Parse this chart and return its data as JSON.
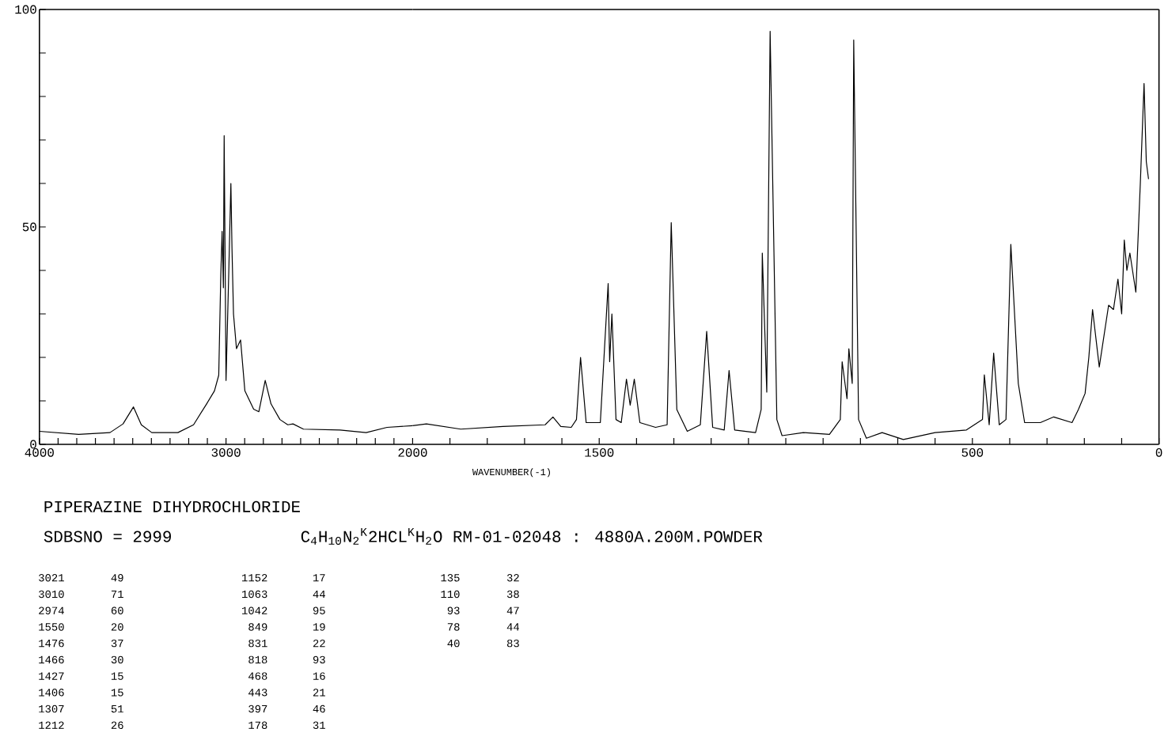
{
  "chart_data": [
    {
      "type": "line",
      "title": "PIPERAZINE DIHYDROCHLORIDE",
      "subtitle": "SDBSNO = 2999",
      "x": [
        4000,
        3790,
        3622,
        3552,
        3496,
        3454,
        3398,
        3258,
        3174,
        3104,
        3062,
        3039,
        3028,
        3021,
        3014,
        3010,
        3000,
        2985,
        2974,
        2968,
        2960,
        2944,
        2922,
        2899,
        2852,
        2824,
        2790,
        2759,
        2711,
        2669,
        2641,
        2585,
        2389,
        2249,
        2137,
        2000
      ],
      "series": [
        {
          "color": "#000000",
          "values": [
            3.0,
            2.3,
            2.7,
            4.7,
            8.6,
            4.5,
            2.7,
            2.7,
            4.5,
            9.3,
            12.3,
            15.9,
            39,
            49,
            36,
            71,
            14.7,
            40,
            60,
            45,
            30,
            22,
            24,
            12.3,
            8.1,
            7.5,
            14.7,
            9.3,
            5.7,
            4.5,
            4.7,
            3.5,
            3.3,
            2.7,
            3.9,
            4.3
          ]
        }
      ],
      "xlim": [
        4000,
        2000
      ],
      "xticks": [
        4000,
        {
          "value": 3900,
          "label": null
        },
        {
          "value": 3800,
          "label": null
        },
        {
          "value": 3700,
          "label": null
        },
        {
          "value": 3600,
          "label": null
        },
        {
          "value": 3500,
          "label": null
        },
        {
          "value": 3400,
          "label": null
        },
        {
          "value": 3300,
          "label": null
        },
        {
          "value": 3200,
          "label": null
        },
        {
          "value": 3100,
          "label": null
        },
        3000,
        {
          "value": 2900,
          "label": null
        },
        {
          "value": 2800,
          "label": null
        },
        {
          "value": 2700,
          "label": null
        },
        {
          "value": 2600,
          "label": null
        },
        {
          "value": 2500,
          "label": null
        },
        {
          "value": 2400,
          "label": null
        },
        {
          "value": 2300,
          "label": null
        },
        {
          "value": 2200,
          "label": null
        },
        {
          "value": 2100,
          "label": null
        },
        2000
      ],
      "ylim": [
        0,
        100
      ],
      "yticks": [
        0,
        {
          "value": 10,
          "label": null
        },
        {
          "value": 20,
          "label": null
        },
        {
          "value": 30,
          "label": null
        },
        {
          "value": 40,
          "label": null
        },
        50,
        {
          "value": 60,
          "label": null
        },
        {
          "value": 70,
          "label": null
        },
        {
          "value": 80,
          "label": null
        },
        {
          "value": 90,
          "label": null
        },
        100
      ],
      "marker": "none",
      "line_style": "solid",
      "annotations": [
        "C$_{4}$H$_{10}$N$_{2}$$^{K}$2HCL$^{K}$H$_{2}$O RM-01-02048 : 4880A.200M.POWDER",
        "3021",
        "49",
        "3010",
        "71",
        "2974",
        "60",
        "1550",
        "20",
        "1476",
        "37",
        "1466",
        "30",
        "1427",
        "15",
        "1406",
        "15",
        "1307",
        "51",
        "1212",
        "26",
        "1152",
        "17",
        "1063",
        "44",
        "1042",
        "95",
        "849",
        "19",
        "831",
        "22",
        "818",
        "93",
        "468",
        "16",
        "443",
        "21",
        "397",
        "46",
        "178",
        "31",
        "135",
        "32",
        "110",
        "38",
        "93",
        "47",
        "78",
        "44",
        "40",
        "83"
      ]
    },
    {
      "type": "line",
      "xlabel": "WAVENUMBER(-1)",
      "x": [
        2000,
        1963,
        1871,
        1758,
        1645,
        1624,
        1603,
        1575,
        1561,
        1550,
        1535,
        1497,
        1476,
        1472,
        1466,
        1455,
        1441,
        1427,
        1417,
        1406,
        1391,
        1349,
        1318,
        1307,
        1292,
        1264,
        1229,
        1212,
        1196,
        1165,
        1152,
        1137,
        1081,
        1066,
        1063,
        1051,
        1042,
        1024,
        1010,
        953,
        883,
        854,
        849,
        836,
        831,
        822,
        818,
        805,
        784,
        742,
        685,
        600,
        516,
        473,
        468,
        455,
        443,
        428,
        410,
        397,
        377,
        360,
        318,
        282,
        233,
        216,
        198,
        188,
        178,
        160,
        135,
        122,
        110,
        100,
        93,
        86,
        78,
        62,
        50,
        40,
        34,
        28
      ],
      "series": [
        {
          "color": "#000000",
          "values": [
            4.3,
            4.7,
            3.5,
            4.1,
            4.5,
            6.3,
            4.1,
            3.9,
            5.7,
            20,
            5,
            5,
            37,
            19,
            30,
            5.7,
            5,
            15,
            9,
            15,
            5,
            3.9,
            4.5,
            51,
            8,
            3,
            4.5,
            26,
            3.9,
            3.3,
            17,
            3.3,
            2.7,
            8,
            44,
            12,
            95,
            5.7,
            2,
            2.7,
            2.3,
            5.7,
            19,
            10.5,
            22,
            14,
            93,
            5.7,
            1.4,
            2.7,
            1.1,
            2.7,
            3.3,
            5.7,
            16,
            4.5,
            21,
            4.5,
            5.7,
            46,
            14,
            5,
            5,
            6.3,
            5,
            8,
            11.7,
            20,
            31,
            17.8,
            32,
            31,
            38,
            30,
            47,
            40,
            44,
            35,
            60,
            83,
            65,
            61
          ]
        }
      ],
      "xlim": [
        2000,
        0
      ],
      "xticks": [
        {
          "value": 1900,
          "label": null
        },
        {
          "value": 1800,
          "label": null
        },
        {
          "value": 1700,
          "label": null
        },
        {
          "value": 1600,
          "label": null
        },
        1500,
        {
          "value": 1400,
          "label": null
        },
        {
          "value": 1300,
          "label": null
        },
        {
          "value": 1200,
          "label": null
        },
        {
          "value": 1100,
          "label": null
        },
        {
          "value": 1000,
          "label": null
        },
        {
          "value": 900,
          "label": null
        },
        {
          "value": 800,
          "label": null
        },
        {
          "value": 700,
          "label": null
        },
        {
          "value": 600,
          "label": null
        },
        500,
        {
          "value": 400,
          "label": null
        },
        {
          "value": 300,
          "label": null
        },
        {
          "value": 200,
          "label": null
        },
        {
          "value": 100,
          "label": null
        },
        0
      ],
      "ylim": [
        0,
        100
      ],
      "tick_labels": "x",
      "marker": "none",
      "line_style": "solid"
    }
  ]
}
